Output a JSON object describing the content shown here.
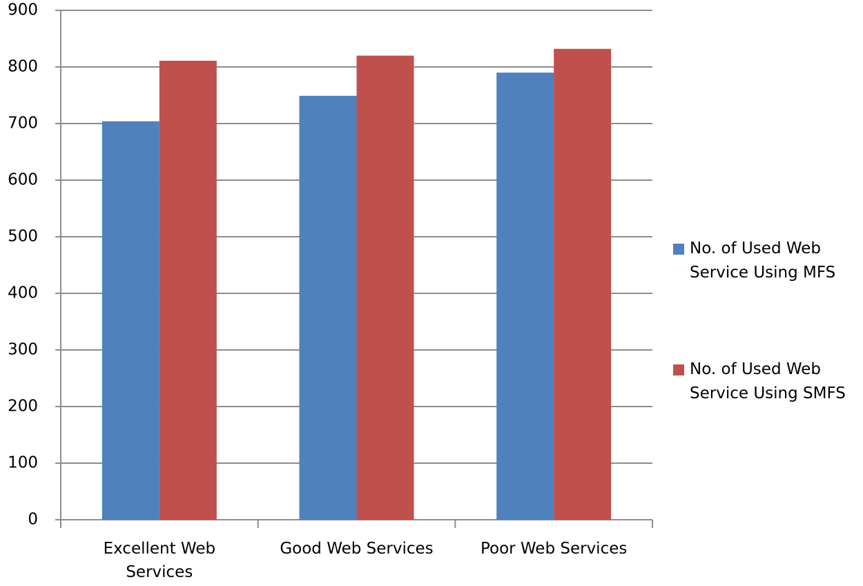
{
  "chart_data": {
    "type": "bar",
    "categories": [
      "Excellent Web Services",
      "Good Web Services",
      "Poor Web Services"
    ],
    "series": [
      {
        "name": "No. of Used Web Service  Using MFS",
        "color": "#4f81bd",
        "values": [
          704,
          749,
          790
        ]
      },
      {
        "name": "No. of Used Web Service  Using SMFS",
        "color": "#c0504d",
        "values": [
          811,
          820,
          832
        ]
      }
    ],
    "ylim": [
      0,
      900
    ],
    "yticks": [
      0,
      100,
      200,
      300,
      400,
      500,
      600,
      700,
      800,
      900
    ],
    "grid": true,
    "legend": "right"
  }
}
